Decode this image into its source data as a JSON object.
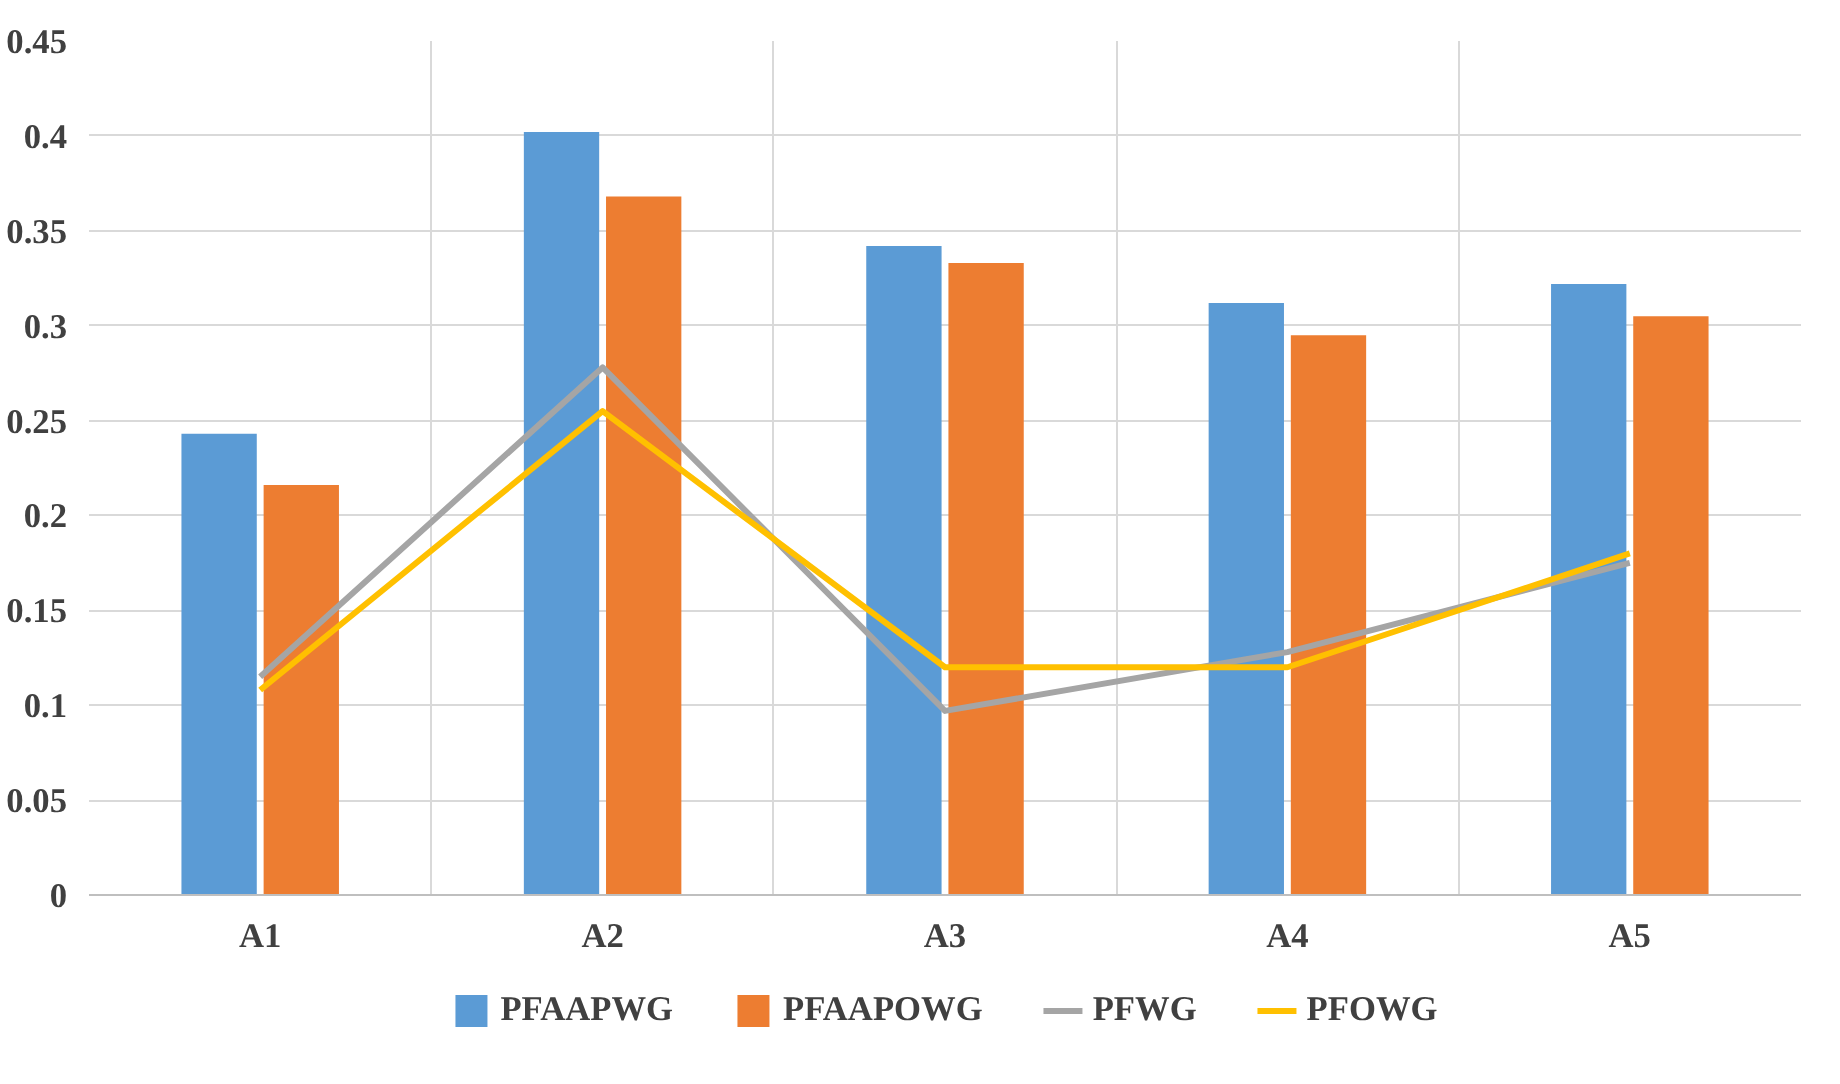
{
  "chart_data": {
    "type": "bar",
    "categories": [
      "A1",
      "A2",
      "A3",
      "A4",
      "A5"
    ],
    "series": [
      {
        "name": "PFAAPWG",
        "color": "#5b9bd5",
        "values": [
          0.243,
          0.402,
          0.342,
          0.312,
          0.322
        ]
      },
      {
        "name": "PFAAPOWG",
        "color": "#ed7d31",
        "values": [
          0.216,
          0.368,
          0.333,
          0.295,
          0.305
        ]
      },
      {
        "name": "PFWG",
        "type": "line",
        "color": "#a5a5a5",
        "values": [
          0.115,
          0.278,
          0.097,
          0.128,
          0.175
        ]
      },
      {
        "name": "PFOWG",
        "type": "line",
        "color": "#ffc000",
        "values": [
          0.108,
          0.255,
          0.12,
          0.12,
          0.18
        ]
      }
    ],
    "ylim": [
      0,
      0.45
    ],
    "yticks": [
      0,
      0.05,
      0.1,
      0.15,
      0.2,
      0.25,
      0.3,
      0.35,
      0.4,
      0.45
    ],
    "grid": true,
    "legend": "bottom"
  }
}
